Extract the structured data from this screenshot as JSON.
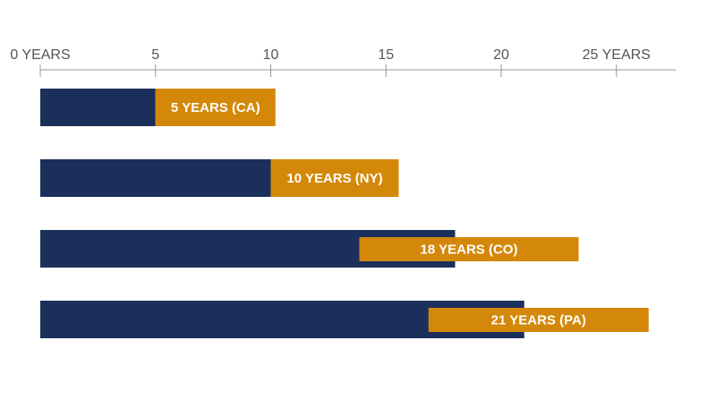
{
  "chart_data": {
    "type": "bar",
    "orientation": "horizontal",
    "categories": [
      "CA",
      "NY",
      "CO",
      "PA"
    ],
    "values": [
      5,
      10,
      18,
      21
    ],
    "data_labels": [
      "5 YEARS (CA)",
      "10 YEARS (NY)",
      "18 YEARS (CO)",
      "21 YEARS (PA)"
    ],
    "xlim": [
      0,
      25
    ],
    "x_ticks": [
      0,
      5,
      10,
      15,
      20,
      25
    ],
    "x_tick_labels": [
      "0 YEARS",
      "5",
      "10",
      "15",
      "20",
      "25 YEARS"
    ],
    "x_axis_position": "top",
    "grid": false,
    "colors": {
      "bar": "#1b2f5b",
      "label_box": "#d4880a",
      "axis": "#999999",
      "tick_text": "#555555"
    }
  }
}
